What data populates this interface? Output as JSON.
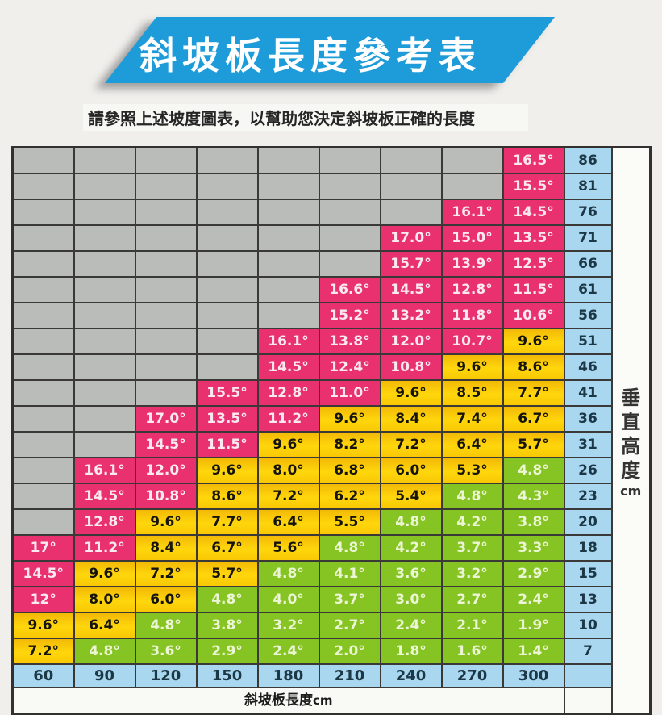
{
  "banner": {
    "title": "斜坡板長度參考表",
    "color": "#1E9CD9"
  },
  "subtitle": "請參照上述坡度圖表，以幫助您決定斜坡板正確的長度",
  "chart_data": {
    "type": "table",
    "title": "斜坡板長度參考表",
    "x_label": "斜坡板長度",
    "x_unit": "cm",
    "y_label": "垂直高度",
    "y_unit": "cm",
    "lengths_cm": [
      60,
      90,
      120,
      150,
      180,
      210,
      240,
      270,
      300
    ],
    "heights_cm": [
      86,
      81,
      76,
      71,
      66,
      61,
      56,
      51,
      46,
      41,
      36,
      31,
      26,
      23,
      20,
      18,
      15,
      13,
      10,
      7
    ],
    "angles": [
      [
        null,
        null,
        null,
        null,
        null,
        null,
        null,
        null,
        "16.5°"
      ],
      [
        null,
        null,
        null,
        null,
        null,
        null,
        null,
        null,
        "15.5°"
      ],
      [
        null,
        null,
        null,
        null,
        null,
        null,
        null,
        "16.1°",
        "14.5°"
      ],
      [
        null,
        null,
        null,
        null,
        null,
        null,
        "17.0°",
        "15.0°",
        "13.5°"
      ],
      [
        null,
        null,
        null,
        null,
        null,
        null,
        "15.7°",
        "13.9°",
        "12.5°"
      ],
      [
        null,
        null,
        null,
        null,
        null,
        "16.6°",
        "14.5°",
        "12.8°",
        "11.5°"
      ],
      [
        null,
        null,
        null,
        null,
        null,
        "15.2°",
        "13.2°",
        "11.8°",
        "10.6°"
      ],
      [
        null,
        null,
        null,
        null,
        "16.1°",
        "13.8°",
        "12.0°",
        "10.7°",
        "9.6°"
      ],
      [
        null,
        null,
        null,
        null,
        "14.5°",
        "12.4°",
        "10.8°",
        "9.6°",
        "8.6°"
      ],
      [
        null,
        null,
        null,
        "15.5°",
        "12.8°",
        "11.0°",
        "9.6°",
        "8.5°",
        "7.7°"
      ],
      [
        null,
        null,
        "17.0°",
        "13.5°",
        "11.2°",
        "9.6°",
        "8.4°",
        "7.4°",
        "6.7°"
      ],
      [
        null,
        null,
        "14.5°",
        "11.5°",
        "9.6°",
        "8.2°",
        "7.2°",
        "6.4°",
        "5.7°"
      ],
      [
        null,
        "16.1°",
        "12.0°",
        "9.6°",
        "8.0°",
        "6.8°",
        "6.0°",
        "5.3°",
        "4.8°"
      ],
      [
        null,
        "14.5°",
        "10.8°",
        "8.6°",
        "7.2°",
        "6.2°",
        "5.4°",
        "4.8°",
        "4.3°"
      ],
      [
        null,
        "12.8°",
        "9.6°",
        "7.7°",
        "6.4°",
        "5.5°",
        "4.8°",
        "4.2°",
        "3.8°"
      ],
      [
        "17°",
        "11.2°",
        "8.4°",
        "6.7°",
        "5.6°",
        "4.8°",
        "4.2°",
        "3.7°",
        "3.3°"
      ],
      [
        "14.5°",
        "9.6°",
        "7.2°",
        "5.7°",
        "4.8°",
        "4.1°",
        "3.6°",
        "3.2°",
        "2.9°"
      ],
      [
        "12°",
        "8.0°",
        "6.0°",
        "4.8°",
        "4.0°",
        "3.7°",
        "3.0°",
        "2.7°",
        "2.4°"
      ],
      [
        "9.6°",
        "6.4°",
        "4.8°",
        "3.8°",
        "3.2°",
        "2.7°",
        "2.4°",
        "2.1°",
        "1.9°"
      ],
      [
        "7.2°",
        "4.8°",
        "3.6°",
        "2.9°",
        "2.4°",
        "2.0°",
        "1.8°",
        "1.6°",
        "1.4°"
      ]
    ],
    "colors": [
      [
        "e",
        "e",
        "e",
        "e",
        "e",
        "e",
        "e",
        "e",
        "p"
      ],
      [
        "e",
        "e",
        "e",
        "e",
        "e",
        "e",
        "e",
        "e",
        "p"
      ],
      [
        "e",
        "e",
        "e",
        "e",
        "e",
        "e",
        "e",
        "p",
        "p"
      ],
      [
        "e",
        "e",
        "e",
        "e",
        "e",
        "e",
        "p",
        "p",
        "p"
      ],
      [
        "e",
        "e",
        "e",
        "e",
        "e",
        "e",
        "p",
        "p",
        "p"
      ],
      [
        "e",
        "e",
        "e",
        "e",
        "e",
        "p",
        "p",
        "p",
        "p"
      ],
      [
        "e",
        "e",
        "e",
        "e",
        "e",
        "p",
        "p",
        "p",
        "p"
      ],
      [
        "e",
        "e",
        "e",
        "e",
        "p",
        "p",
        "p",
        "p",
        "y"
      ],
      [
        "e",
        "e",
        "e",
        "e",
        "p",
        "p",
        "p",
        "y",
        "y"
      ],
      [
        "e",
        "e",
        "e",
        "p",
        "p",
        "p",
        "y",
        "y",
        "y"
      ],
      [
        "e",
        "e",
        "p",
        "p",
        "p",
        "y",
        "y",
        "y",
        "y"
      ],
      [
        "e",
        "e",
        "p",
        "p",
        "y",
        "y",
        "y",
        "y",
        "y"
      ],
      [
        "e",
        "p",
        "p",
        "y",
        "y",
        "y",
        "y",
        "y",
        "g"
      ],
      [
        "e",
        "p",
        "p",
        "y",
        "y",
        "y",
        "y",
        "g",
        "g"
      ],
      [
        "e",
        "p",
        "y",
        "y",
        "y",
        "y",
        "g",
        "g",
        "g"
      ],
      [
        "p",
        "p",
        "y",
        "y",
        "y",
        "g",
        "g",
        "g",
        "g"
      ],
      [
        "p",
        "y",
        "y",
        "y",
        "g",
        "g",
        "g",
        "g",
        "g"
      ],
      [
        "p",
        "y",
        "y",
        "g",
        "g",
        "g",
        "g",
        "g",
        "g"
      ],
      [
        "y",
        "y",
        "g",
        "g",
        "g",
        "g",
        "g",
        "g",
        "g"
      ],
      [
        "y",
        "g",
        "g",
        "g",
        "g",
        "g",
        "g",
        "g",
        "g"
      ]
    ],
    "legend_colors": {
      "steep_pink": "#E8316E",
      "medium_yellow": "#FFD60C",
      "gentle_green": "#86C424",
      "axis_blue": "#A9D7EF",
      "empty_gray": "#BABCB9"
    }
  }
}
